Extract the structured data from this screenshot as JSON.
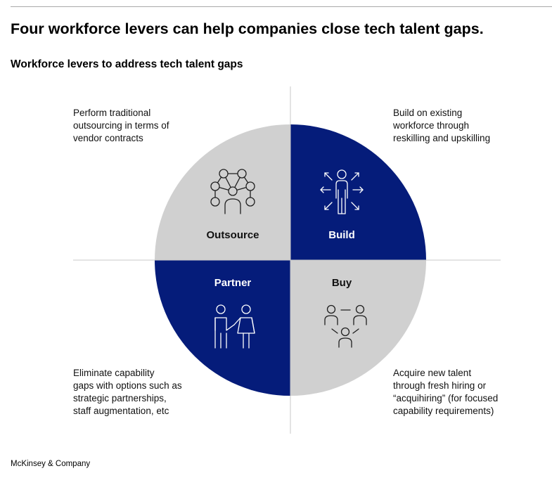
{
  "headline": "Four workforce levers can help companies close tech talent gaps.",
  "subtitle": "Workforce levers to address tech talent gaps",
  "quadrants": {
    "outsource": {
      "label": "Outsource",
      "icon": "network-person-icon",
      "color": "#d0d0d0",
      "description": [
        "Perform traditional",
        "outsourcing in terms of",
        "vendor contracts"
      ]
    },
    "build": {
      "label": "Build",
      "icon": "person-growth-arrows-icon",
      "color": "#051c7a",
      "description": [
        "Build on existing",
        "workforce through",
        "reskilling and upskilling"
      ]
    },
    "partner": {
      "label": "Partner",
      "icon": "two-people-holding-hands-icon",
      "color": "#051c7a",
      "description": [
        "Eliminate capability",
        "gaps with options such as",
        "strategic partnerships,",
        "staff augmentation, etc"
      ]
    },
    "buy": {
      "label": "Buy",
      "icon": "three-people-connected-icon",
      "color": "#d0d0d0",
      "description": [
        "Acquire new talent",
        "through fresh hiring or",
        "“acquihiring” (for focused",
        "capability requirements)"
      ]
    }
  },
  "footer": "McKinsey & Company"
}
